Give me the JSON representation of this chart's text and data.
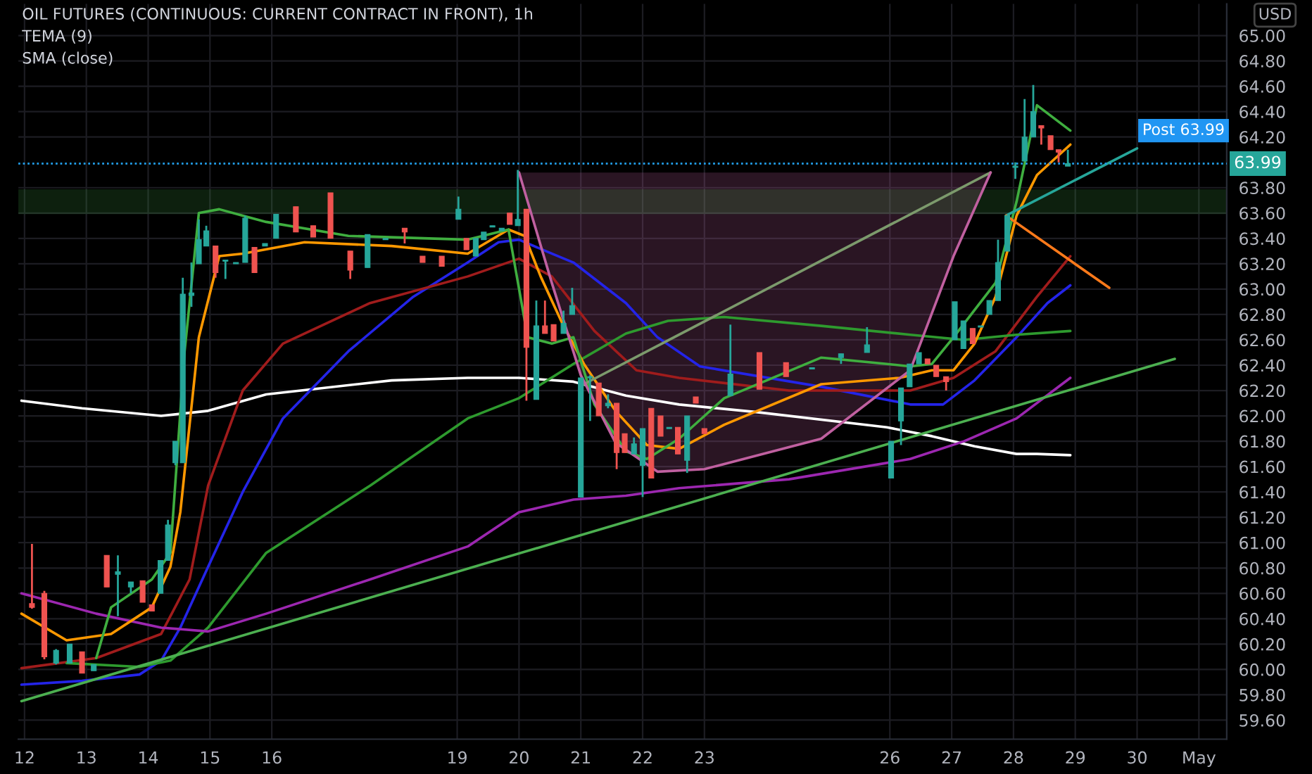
{
  "chart_data": {
    "type": "candlestick",
    "title": "OIL FUTURES (CONTINUOUS: CURRENT CONTRACT IN FRONT), 1h",
    "ylabel": "USD",
    "annotations": [
      "TEMA (9)",
      "SMA (close)"
    ],
    "x": [
      12.12,
      12.32,
      12.51,
      12.73,
      12.93,
      13.12,
      13.33,
      13.51,
      13.72,
      13.91,
      14.06,
      14.2,
      14.32,
      14.44,
      14.56,
      14.7,
      14.82,
      14.94,
      15.09,
      15.25,
      15.42,
      15.57,
      15.72,
      15.89,
      16.07,
      16.39,
      16.67,
      16.95,
      17.27,
      17.55,
      17.84,
      18.15,
      18.44,
      18.75,
      19.02,
      19.15,
      19.3,
      19.43,
      19.57,
      19.72,
      19.85,
      19.98,
      20.12,
      20.28,
      20.42,
      20.56,
      20.72,
      20.86,
      21.0,
      21.15,
      21.29,
      21.44,
      21.58,
      21.71,
      21.86,
      22.0,
      22.14,
      22.29,
      22.43,
      22.57,
      22.72,
      22.86,
      23.0,
      23.42,
      23.89,
      24.32,
      24.74,
      25.21,
      25.63,
      26.02,
      26.18,
      26.32,
      26.47,
      26.61,
      26.75,
      26.91,
      27.05,
      27.19,
      27.34,
      27.47,
      27.61,
      27.75,
      27.9,
      28.03,
      28.18,
      28.32,
      28.45,
      28.6,
      28.73,
      28.88
    ],
    "ohlc": [
      [
        60.52,
        60.99,
        60.48,
        60.49
      ],
      [
        60.6,
        60.62,
        60.08,
        60.1
      ],
      [
        60.05,
        60.16,
        60.04,
        60.15
      ],
      [
        60.05,
        60.2,
        60.05,
        60.2
      ],
      [
        60.14,
        60.14,
        59.97,
        59.97
      ],
      [
        59.99,
        60.04,
        59.99,
        60.04
      ],
      [
        60.9,
        60.9,
        60.65,
        60.65
      ],
      [
        60.75,
        60.9,
        60.42,
        60.77
      ],
      [
        60.65,
        60.69,
        60.6,
        60.69
      ],
      [
        60.7,
        60.7,
        60.53,
        60.53
      ],
      [
        60.51,
        60.51,
        60.46,
        60.46
      ],
      [
        60.6,
        60.86,
        60.6,
        60.86
      ],
      [
        60.86,
        61.18,
        60.86,
        61.14
      ],
      [
        61.63,
        61.8,
        61.61,
        61.8
      ],
      [
        61.63,
        63.09,
        61.63,
        62.96
      ],
      [
        62.95,
        63.21,
        62.86,
        62.97
      ],
      [
        63.2,
        63.55,
        63.2,
        63.39
      ],
      [
        63.34,
        63.5,
        63.34,
        63.46
      ],
      [
        63.34,
        63.34,
        63.09,
        63.13
      ],
      [
        63.22,
        63.23,
        63.08,
        63.23
      ],
      [
        63.2,
        63.21,
        63.2,
        63.21
      ],
      [
        63.21,
        63.58,
        63.21,
        63.56
      ],
      [
        63.33,
        63.33,
        63.13,
        63.13
      ],
      [
        63.34,
        63.36,
        63.34,
        63.36
      ],
      [
        63.4,
        63.59,
        63.4,
        63.59
      ],
      [
        63.65,
        63.65,
        63.45,
        63.45
      ],
      [
        63.5,
        63.5,
        63.41,
        63.41
      ],
      [
        63.76,
        63.76,
        63.4,
        63.4
      ],
      [
        63.3,
        63.3,
        63.08,
        63.15
      ],
      [
        63.17,
        63.43,
        63.17,
        63.43
      ],
      [
        63.39,
        63.4,
        63.39,
        63.4
      ],
      [
        63.48,
        63.48,
        63.36,
        63.45
      ],
      [
        63.26,
        63.26,
        63.21,
        63.21
      ],
      [
        63.26,
        63.26,
        63.18,
        63.18
      ],
      [
        63.55,
        63.73,
        63.55,
        63.63
      ],
      [
        63.4,
        63.4,
        63.31,
        63.31
      ],
      [
        63.26,
        63.4,
        63.26,
        63.4
      ],
      [
        63.39,
        63.45,
        63.39,
        63.45
      ],
      [
        63.49,
        63.5,
        63.49,
        63.5
      ],
      [
        63.46,
        63.48,
        63.46,
        63.48
      ],
      [
        63.6,
        63.6,
        63.51,
        63.51
      ],
      [
        63.5,
        63.94,
        63.5,
        63.55
      ],
      [
        63.63,
        63.63,
        62.12,
        62.54
      ],
      [
        62.13,
        62.91,
        62.13,
        62.71
      ],
      [
        62.71,
        62.91,
        62.65,
        62.65
      ],
      [
        62.72,
        62.72,
        62.59,
        62.59
      ],
      [
        62.65,
        62.83,
        62.65,
        62.73
      ],
      [
        62.8,
        63.01,
        62.8,
        62.87
      ],
      [
        61.36,
        62.3,
        61.36,
        62.3
      ],
      [
        62.3,
        62.32,
        61.96,
        62.31
      ],
      [
        62.26,
        62.26,
        62.0,
        62.0
      ],
      [
        62.08,
        62.17,
        62.06,
        62.1
      ],
      [
        62.1,
        62.1,
        61.58,
        61.71
      ],
      [
        61.86,
        61.86,
        61.71,
        61.71
      ],
      [
        61.7,
        61.83,
        61.7,
        61.78
      ],
      [
        61.61,
        61.9,
        61.36,
        61.9
      ],
      [
        62.06,
        62.06,
        61.51,
        61.51
      ],
      [
        62.0,
        62.0,
        61.84,
        61.84
      ],
      [
        61.9,
        61.91,
        61.9,
        61.91
      ],
      [
        61.91,
        61.91,
        61.7,
        61.7
      ],
      [
        61.65,
        62.0,
        61.55,
        62.0
      ],
      [
        62.15,
        62.15,
        62.1,
        62.1
      ],
      [
        61.9,
        61.9,
        61.86,
        61.86
      ],
      [
        62.16,
        62.72,
        62.16,
        62.33
      ],
      [
        62.5,
        62.5,
        62.21,
        62.21
      ],
      [
        62.42,
        62.42,
        62.31,
        62.31
      ],
      [
        62.37,
        62.38,
        62.37,
        62.38
      ],
      [
        62.46,
        62.49,
        62.41,
        62.49
      ],
      [
        62.5,
        62.7,
        62.5,
        62.56
      ],
      [
        61.51,
        61.8,
        61.51,
        61.8
      ],
      [
        61.96,
        62.22,
        61.77,
        62.22
      ],
      [
        62.23,
        62.41,
        62.23,
        62.41
      ],
      [
        62.41,
        62.5,
        62.41,
        62.5
      ],
      [
        62.45,
        62.45,
        62.41,
        62.41
      ],
      [
        62.4,
        62.4,
        62.31,
        62.31
      ],
      [
        62.31,
        62.31,
        62.2,
        62.27
      ],
      [
        62.6,
        62.9,
        62.6,
        62.9
      ],
      [
        62.53,
        62.75,
        62.53,
        62.75
      ],
      [
        62.69,
        62.69,
        62.57,
        62.57
      ],
      [
        62.7,
        62.71,
        62.7,
        62.71
      ],
      [
        62.8,
        62.91,
        62.8,
        62.91
      ],
      [
        62.91,
        63.39,
        62.91,
        63.21
      ],
      [
        63.3,
        63.58,
        63.3,
        63.58
      ],
      [
        63.96,
        64.0,
        63.87,
        63.97
      ],
      [
        64.01,
        64.5,
        64.01,
        64.2
      ],
      [
        64.2,
        64.61,
        64.2,
        64.4
      ],
      [
        64.29,
        64.29,
        64.14,
        64.27
      ],
      [
        64.21,
        64.21,
        64.1,
        64.1
      ],
      [
        64.1,
        64.1,
        64.0,
        64.08
      ],
      [
        63.97,
        64.1,
        63.97,
        63.99
      ]
    ],
    "series": [
      {
        "type": "line",
        "color": "#ffffff",
        "x": [
          11.95,
          12.93,
          14.21,
          14.97,
          15.91,
          17.94,
          19.17,
          20.0,
          20.88,
          21.73,
          22.59,
          23.84,
          25.95,
          26.68,
          27.37,
          28.05,
          28.38,
          28.92
        ],
        "values": [
          62.12,
          62.06,
          62.0,
          62.04,
          62.17,
          62.28,
          62.3,
          62.3,
          62.27,
          62.16,
          62.09,
          62.03,
          61.91,
          61.84,
          61.76,
          61.7,
          61.7,
          61.69
        ]
      },
      {
        "type": "line",
        "color": "#2424e8",
        "x": [
          11.95,
          12.93,
          13.86,
          14.21,
          14.52,
          14.97,
          15.53,
          16.18,
          17.24,
          18.29,
          19.17,
          19.67,
          20.0,
          20.53,
          20.88,
          21.73,
          22.24,
          22.93,
          24.89,
          26.33,
          26.86,
          27.37,
          28.05,
          28.55,
          28.92
        ],
        "values": [
          59.88,
          59.91,
          59.96,
          60.07,
          60.33,
          60.81,
          61.4,
          61.98,
          62.51,
          62.94,
          63.21,
          63.37,
          63.39,
          63.28,
          63.21,
          62.89,
          62.62,
          62.39,
          62.23,
          62.09,
          62.09,
          62.28,
          62.62,
          62.89,
          63.03
        ]
      },
      {
        "type": "line",
        "color": "#a01c1c",
        "x": [
          11.95,
          13.16,
          14.21,
          14.67,
          14.97,
          15.53,
          16.18,
          17.59,
          19.17,
          20.0,
          20.53,
          21.22,
          21.9,
          22.59,
          24.37,
          26.33,
          27.03,
          27.71,
          28.38,
          28.92
        ],
        "values": [
          60.01,
          60.09,
          60.28,
          60.71,
          61.45,
          62.2,
          62.57,
          62.89,
          63.1,
          63.24,
          63.1,
          62.67,
          62.36,
          62.3,
          62.2,
          62.2,
          62.3,
          62.51,
          62.94,
          63.26
        ]
      },
      {
        "type": "line",
        "color": "#2e9a2e",
        "x": [
          12.68,
          13.86,
          14.36,
          14.97,
          15.91,
          17.59,
          19.17,
          20.0,
          20.88,
          21.73,
          22.41,
          23.32,
          24.89,
          26.33,
          27.2,
          28.05,
          28.92
        ],
        "values": [
          60.05,
          60.02,
          60.07,
          60.33,
          60.92,
          61.45,
          61.98,
          62.14,
          62.41,
          62.65,
          62.75,
          62.78,
          62.71,
          62.64,
          62.6,
          62.64,
          62.67
        ]
      },
      {
        "type": "line",
        "color": "#9c27b0",
        "x": [
          11.95,
          13.16,
          14.21,
          14.97,
          15.91,
          17.59,
          19.17,
          20.0,
          20.88,
          21.73,
          22.59,
          24.37,
          26.33,
          27.2,
          28.05,
          28.92
        ],
        "values": [
          60.6,
          60.44,
          60.33,
          60.3,
          60.44,
          60.71,
          60.97,
          61.24,
          61.34,
          61.37,
          61.43,
          61.5,
          61.66,
          61.8,
          61.98,
          62.3
        ]
      },
      {
        "type": "line",
        "color": "#ff9800",
        "x": [
          11.95,
          12.68,
          13.4,
          14.06,
          14.36,
          14.52,
          14.82,
          15.15,
          15.53,
          16.53,
          17.94,
          19.17,
          19.83,
          20.09,
          20.35,
          20.7,
          21.05,
          21.56,
          22.07,
          22.59,
          23.32,
          24.89,
          26.16,
          26.68,
          27.03,
          27.37,
          27.71,
          28.05,
          28.38,
          28.92
        ],
        "values": [
          60.44,
          60.23,
          60.28,
          60.49,
          60.81,
          61.24,
          62.62,
          63.26,
          63.28,
          63.37,
          63.34,
          63.28,
          63.47,
          63.42,
          63.1,
          62.73,
          62.41,
          62.04,
          61.77,
          61.74,
          61.93,
          62.25,
          62.3,
          62.36,
          62.36,
          62.57,
          62.94,
          63.58,
          63.9,
          64.14
        ]
      },
      {
        "type": "line",
        "color": "#3fae3f",
        "x": [
          13.16,
          13.4,
          14.06,
          14.36,
          14.59,
          14.82,
          15.15,
          15.53,
          15.91,
          17.24,
          19.17,
          19.83,
          20.14,
          20.53,
          20.88,
          21.22,
          21.73,
          22.07,
          22.59,
          23.32,
          24.89,
          25.95,
          26.33,
          26.68,
          27.03,
          27.71,
          28.05,
          28.38,
          28.92
        ],
        "values": [
          60.09,
          60.49,
          60.71,
          60.92,
          62.51,
          63.6,
          63.63,
          63.58,
          63.53,
          63.42,
          63.39,
          63.47,
          62.62,
          62.57,
          62.62,
          62.09,
          61.72,
          61.66,
          61.82,
          62.14,
          62.46,
          62.41,
          62.39,
          62.41,
          62.62,
          63.05,
          63.69,
          64.45,
          64.25
        ]
      },
      {
        "type": "line",
        "color": "#4caf50",
        "x": [
          11.95,
          30.61
        ],
        "values": [
          59.75,
          62.45
        ]
      },
      {
        "type": "line",
        "color": "#7c9a6c",
        "x": [
          21.05,
          27.63
        ],
        "values": [
          62.25,
          63.92
        ]
      },
      {
        "type": "line",
        "color": "#26a69a",
        "x": [
          27.88,
          30.0
        ],
        "values": [
          63.58,
          64.11
        ]
      },
      {
        "type": "line",
        "color": "#ff7a1a",
        "x": [
          27.88,
          29.55
        ],
        "values": [
          63.58,
          63.01
        ]
      },
      {
        "type": "line",
        "color": "#c060a0",
        "x": [
          20.0,
          20.53,
          21.0,
          21.56,
          22.24,
          23.0,
          24.89,
          26.33,
          27.03,
          27.63
        ],
        "values": [
          63.92,
          63.05,
          62.32,
          61.79,
          61.56,
          61.58,
          61.82,
          62.36,
          63.26,
          63.92
        ],
        "lower": [
          63.92,
          63.05,
          62.32,
          61.79,
          61.56,
          61.58,
          61.82,
          62.36,
          63.26,
          63.92
        ],
        "upper": [
          63.92,
          63.92,
          63.92,
          63.92,
          63.92,
          63.92,
          63.92,
          63.92,
          63.92,
          63.92
        ]
      }
    ],
    "xlim": [
      11.9,
      31.45
    ],
    "xticks": [
      12,
      13,
      14,
      15,
      16,
      19,
      20,
      21,
      22,
      23,
      26,
      27,
      28,
      29,
      30,
      {
        "value": 31,
        "label": "May"
      }
    ],
    "ylim": [
      59.45,
      65.25
    ],
    "yticks": [
      {
        "value": 59.6,
        "label": "59.60"
      },
      {
        "value": 59.8,
        "label": "59.80"
      },
      {
        "value": 60.0,
        "label": "60.00"
      },
      {
        "value": 60.2,
        "label": "60.20"
      },
      {
        "value": 60.4,
        "label": "60.40"
      },
      {
        "value": 60.6,
        "label": "60.60"
      },
      {
        "value": 60.8,
        "label": "60.80"
      },
      {
        "value": 61.0,
        "label": "61.00"
      },
      {
        "value": 61.2,
        "label": "61.20"
      },
      {
        "value": 61.4,
        "label": "61.40"
      },
      {
        "value": 61.6,
        "label": "61.60"
      },
      {
        "value": 61.8,
        "label": "61.80"
      },
      {
        "value": 62.0,
        "label": "62.00"
      },
      {
        "value": 62.2,
        "label": "62.20"
      },
      {
        "value": 62.4,
        "label": "62.40"
      },
      {
        "value": 62.6,
        "label": "62.60"
      },
      {
        "value": 62.8,
        "label": "62.80"
      },
      {
        "value": 63.0,
        "label": "63.00"
      },
      {
        "value": 63.2,
        "label": "63.20"
      },
      {
        "value": 63.4,
        "label": "63.40"
      },
      {
        "value": 63.6,
        "label": "63.60"
      },
      {
        "value": 63.8,
        "label": "63.80"
      },
      {
        "value": 64.2,
        "label": "64.20"
      },
      {
        "value": 64.4,
        "label": "64.40"
      },
      {
        "value": 64.6,
        "label": "64.60"
      },
      {
        "value": 64.8,
        "label": "64.80"
      },
      {
        "value": 65.0,
        "label": "65.00"
      }
    ],
    "grid": true,
    "ref_lines": [
      {
        "axis": "y",
        "value": 63.99,
        "label": "63.99",
        "color": "#26a69a",
        "line_style": "dotted"
      },
      {
        "axis": "y",
        "value": 63.99,
        "label": "Post 63.99",
        "color": "#2196f3",
        "line_style": "dotted"
      }
    ],
    "bands": [
      {
        "axis": "y",
        "from": 63.6,
        "to": 63.78,
        "color": "#4caf50"
      }
    ]
  }
}
